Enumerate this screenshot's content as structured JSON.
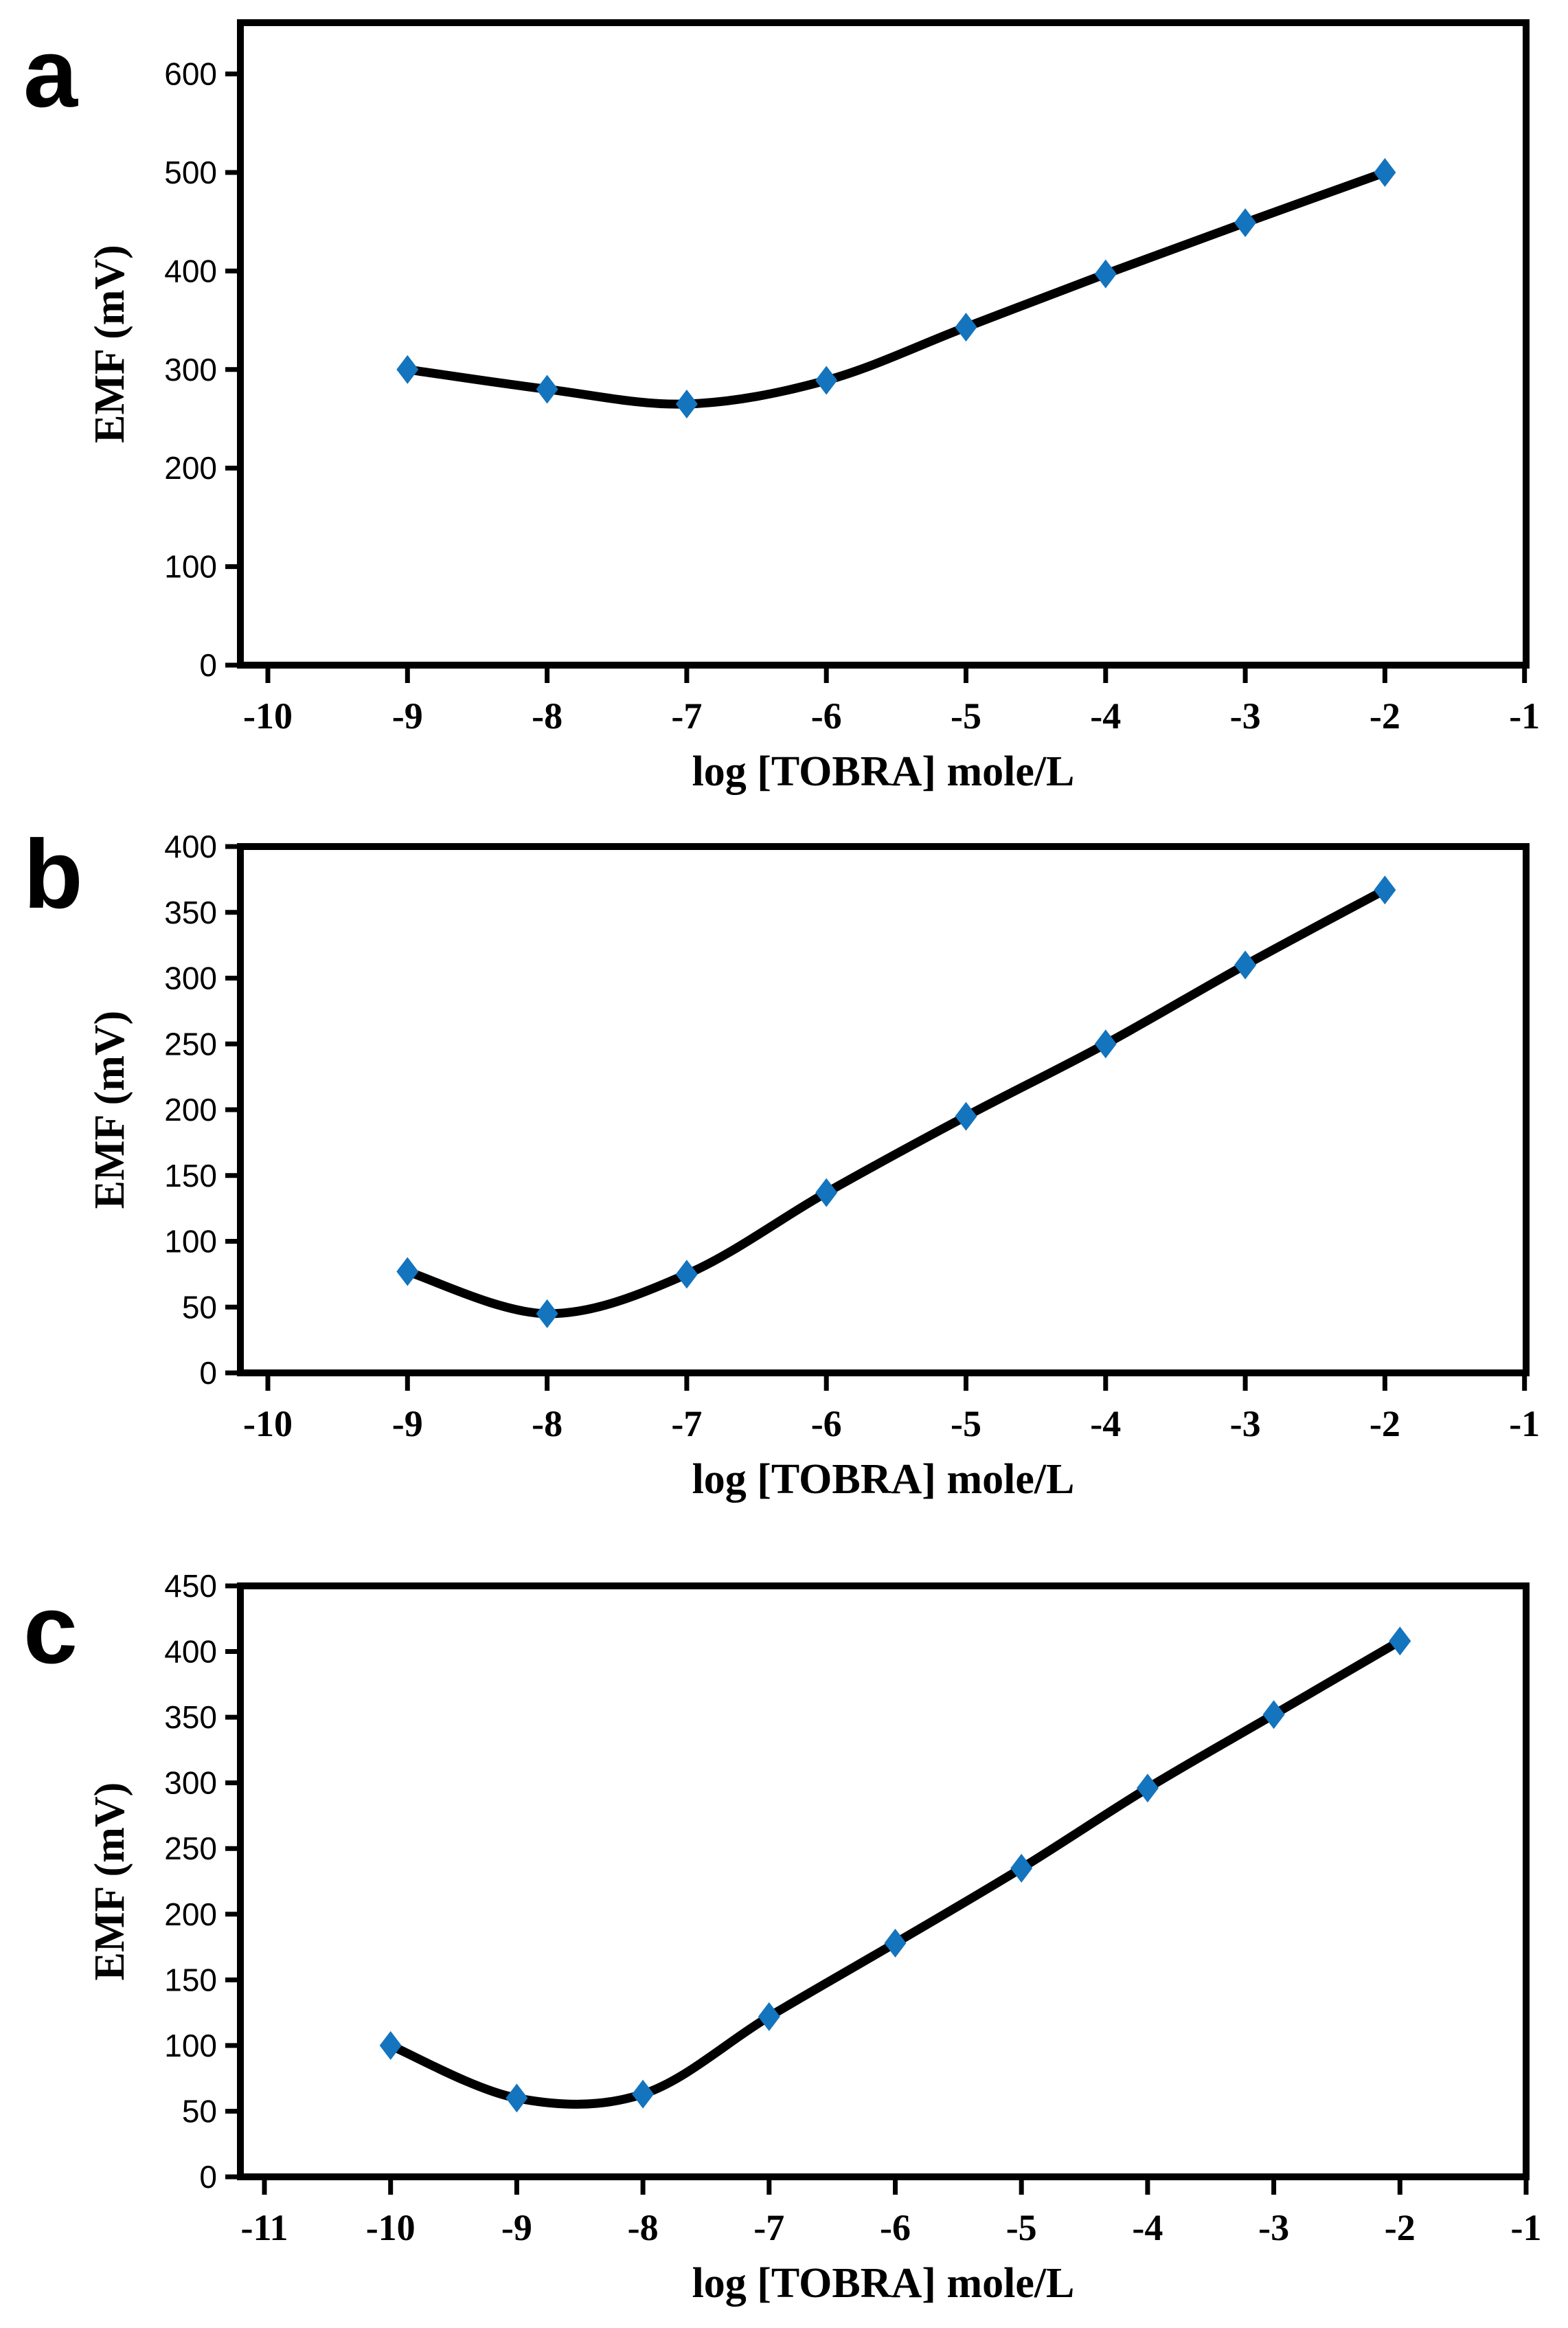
{
  "chart_data": [
    {
      "id": "a",
      "panel_label": "a",
      "type": "line",
      "xlabel": "log [TOBRA] mole/L",
      "ylabel": "EMF (mV)",
      "x": [
        -9,
        -8,
        -7,
        -6,
        -5,
        -4,
        -3,
        -2
      ],
      "y": [
        300,
        280,
        265,
        289,
        343,
        397,
        449,
        500
      ],
      "x_ticks": [
        -10,
        -9,
        -8,
        -7,
        -6,
        -5,
        -4,
        -3,
        -2,
        -1
      ],
      "y_ticks": [
        0,
        100,
        200,
        300,
        400,
        500,
        600
      ],
      "xlim": [
        -10,
        -1
      ],
      "ylim": [
        0,
        650
      ],
      "grid": false,
      "legend": null,
      "line_color": "#000000",
      "marker": "diamond",
      "marker_color": "#1474be"
    },
    {
      "id": "b",
      "panel_label": "b",
      "type": "line",
      "xlabel": "log [TOBRA] mole/L",
      "ylabel": "EMF (mV)",
      "x": [
        -9,
        -8,
        -7,
        -6,
        -5,
        -4,
        -3,
        -2
      ],
      "y": [
        77,
        45,
        75,
        137,
        195,
        250,
        310,
        367
      ],
      "x_ticks": [
        -10,
        -9,
        -8,
        -7,
        -6,
        -5,
        -4,
        -3,
        -2,
        -1
      ],
      "y_ticks": [
        0,
        50,
        100,
        150,
        200,
        250,
        300,
        350,
        400
      ],
      "xlim": [
        -10,
        -1
      ],
      "ylim": [
        0,
        400
      ],
      "grid": false,
      "legend": null,
      "line_color": "#000000",
      "marker": "diamond",
      "marker_color": "#1474be"
    },
    {
      "id": "c",
      "panel_label": "c",
      "type": "line",
      "xlabel": "log [TOBRA] mole/L",
      "ylabel": "EMF (mV)",
      "x": [
        -10,
        -9,
        -8,
        -7,
        -6,
        -5,
        -4,
        -3,
        -2
      ],
      "y": [
        100,
        60,
        63,
        122,
        178,
        235,
        296,
        352,
        408
      ],
      "x_ticks": [
        -11,
        -10,
        -9,
        -8,
        -7,
        -6,
        -5,
        -4,
        -3,
        -2,
        -1
      ],
      "y_ticks": [
        0,
        50,
        100,
        150,
        200,
        250,
        300,
        350,
        400,
        450
      ],
      "xlim": [
        -11,
        -1
      ],
      "ylim": [
        0,
        450
      ],
      "grid": false,
      "legend": null,
      "line_color": "#000000",
      "marker": "diamond",
      "marker_color": "#1474be"
    }
  ]
}
